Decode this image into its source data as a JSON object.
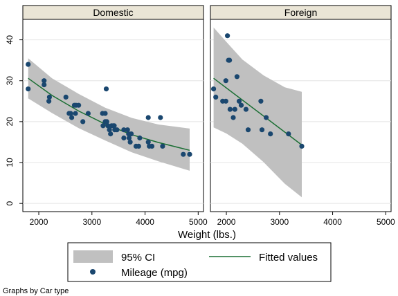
{
  "chart_data": {
    "type": "scatter",
    "xlabel": "Weight (lbs.)",
    "xlim": [
      1700,
      5100
    ],
    "xticks": [
      2000,
      3000,
      4000,
      5000
    ],
    "ylim": [
      -2,
      45
    ],
    "yticks": [
      0,
      10,
      20,
      30,
      40
    ],
    "grid": true,
    "legend": {
      "position": "bottom",
      "entries": [
        {
          "label": "95% CI",
          "kind": "band",
          "color": "#c0c0c0"
        },
        {
          "label": "Fitted values",
          "kind": "line",
          "color": "#1a6e33"
        },
        {
          "label": "Mileage (mpg)",
          "kind": "marker",
          "color": "#1a476f"
        }
      ]
    },
    "note": "Graphs by Car type",
    "colors": {
      "points": "#1a476f",
      "fit": "#1a6e33",
      "ci": "#c0c0c0",
      "strip": "#eae5d6",
      "grid": "#e4e4e4"
    },
    "panels": [
      {
        "title": "Domestic",
        "points": [
          {
            "x": 1800,
            "y": 34
          },
          {
            "x": 1800,
            "y": 28
          },
          {
            "x": 2100,
            "y": 30
          },
          {
            "x": 2100,
            "y": 29
          },
          {
            "x": 2200,
            "y": 26
          },
          {
            "x": 2190,
            "y": 25
          },
          {
            "x": 2510,
            "y": 26
          },
          {
            "x": 2570,
            "y": 22
          },
          {
            "x": 2600,
            "y": 22
          },
          {
            "x": 2620,
            "y": 21
          },
          {
            "x": 2670,
            "y": 24
          },
          {
            "x": 2700,
            "y": 24
          },
          {
            "x": 2750,
            "y": 24
          },
          {
            "x": 2690,
            "y": 22
          },
          {
            "x": 2830,
            "y": 20
          },
          {
            "x": 2930,
            "y": 22
          },
          {
            "x": 3200,
            "y": 22
          },
          {
            "x": 3250,
            "y": 22
          },
          {
            "x": 3250,
            "y": 20
          },
          {
            "x": 3270,
            "y": 28
          },
          {
            "x": 3210,
            "y": 19
          },
          {
            "x": 3280,
            "y": 20
          },
          {
            "x": 3300,
            "y": 19
          },
          {
            "x": 3330,
            "y": 18
          },
          {
            "x": 3350,
            "y": 17
          },
          {
            "x": 3370,
            "y": 19
          },
          {
            "x": 3400,
            "y": 19
          },
          {
            "x": 3420,
            "y": 19
          },
          {
            "x": 3430,
            "y": 18
          },
          {
            "x": 3470,
            "y": 18
          },
          {
            "x": 3600,
            "y": 18
          },
          {
            "x": 3600,
            "y": 16
          },
          {
            "x": 3670,
            "y": 18
          },
          {
            "x": 3690,
            "y": 17
          },
          {
            "x": 3700,
            "y": 16
          },
          {
            "x": 3720,
            "y": 15
          },
          {
            "x": 3740,
            "y": 17
          },
          {
            "x": 3830,
            "y": 14
          },
          {
            "x": 3880,
            "y": 14
          },
          {
            "x": 3900,
            "y": 16
          },
          {
            "x": 4060,
            "y": 15
          },
          {
            "x": 4080,
            "y": 14
          },
          {
            "x": 4060,
            "y": 21
          },
          {
            "x": 4130,
            "y": 14
          },
          {
            "x": 4290,
            "y": 21
          },
          {
            "x": 4330,
            "y": 14
          },
          {
            "x": 4720,
            "y": 12
          },
          {
            "x": 4840,
            "y": 12
          }
        ],
        "fit": [
          {
            "x": 1800,
            "y": 30.6
          },
          {
            "x": 2250,
            "y": 26.4
          },
          {
            "x": 2750,
            "y": 22.6
          },
          {
            "x": 3250,
            "y": 19.4
          },
          {
            "x": 3750,
            "y": 16.8
          },
          {
            "x": 4250,
            "y": 14.9
          },
          {
            "x": 4840,
            "y": 13.0
          }
        ],
        "ci_upper": [
          {
            "x": 1800,
            "y": 35.5
          },
          {
            "x": 2250,
            "y": 30.6
          },
          {
            "x": 2750,
            "y": 26.8
          },
          {
            "x": 3250,
            "y": 23.4
          },
          {
            "x": 3750,
            "y": 20.9
          },
          {
            "x": 4250,
            "y": 19.3
          },
          {
            "x": 4840,
            "y": 18.3
          }
        ],
        "ci_lower": [
          {
            "x": 1800,
            "y": 25.7
          },
          {
            "x": 2250,
            "y": 22.1
          },
          {
            "x": 2750,
            "y": 18.4
          },
          {
            "x": 3250,
            "y": 15.4
          },
          {
            "x": 3750,
            "y": 12.5
          },
          {
            "x": 4250,
            "y": 10.3
          },
          {
            "x": 4840,
            "y": 8.0
          }
        ]
      },
      {
        "title": "Foreign",
        "points": [
          {
            "x": 1760,
            "y": 28
          },
          {
            "x": 1800,
            "y": 26
          },
          {
            "x": 1930,
            "y": 25
          },
          {
            "x": 1990,
            "y": 30
          },
          {
            "x": 1990,
            "y": 25
          },
          {
            "x": 2020,
            "y": 41
          },
          {
            "x": 2040,
            "y": 35
          },
          {
            "x": 2060,
            "y": 35
          },
          {
            "x": 2070,
            "y": 23
          },
          {
            "x": 2130,
            "y": 21
          },
          {
            "x": 2160,
            "y": 23
          },
          {
            "x": 2200,
            "y": 31
          },
          {
            "x": 2240,
            "y": 25
          },
          {
            "x": 2280,
            "y": 24
          },
          {
            "x": 2370,
            "y": 23
          },
          {
            "x": 2410,
            "y": 18
          },
          {
            "x": 2650,
            "y": 25
          },
          {
            "x": 2670,
            "y": 18
          },
          {
            "x": 2750,
            "y": 21
          },
          {
            "x": 2830,
            "y": 17
          },
          {
            "x": 3170,
            "y": 17
          },
          {
            "x": 3420,
            "y": 14
          }
        ],
        "fit": [
          {
            "x": 1760,
            "y": 30.6
          },
          {
            "x": 3420,
            "y": 14.3
          }
        ],
        "ci_upper": [
          {
            "x": 1760,
            "y": 43.0
          },
          {
            "x": 2000,
            "y": 39.5
          },
          {
            "x": 2300,
            "y": 35.2
          },
          {
            "x": 2700,
            "y": 31.3
          },
          {
            "x": 3100,
            "y": 28.4
          },
          {
            "x": 3420,
            "y": 27.3
          }
        ],
        "ci_lower": [
          {
            "x": 1760,
            "y": 18.6
          },
          {
            "x": 2000,
            "y": 17.1
          },
          {
            "x": 2300,
            "y": 14.6
          },
          {
            "x": 2700,
            "y": 10.1
          },
          {
            "x": 3100,
            "y": 4.8
          },
          {
            "x": 3420,
            "y": 1.5
          }
        ]
      }
    ]
  }
}
